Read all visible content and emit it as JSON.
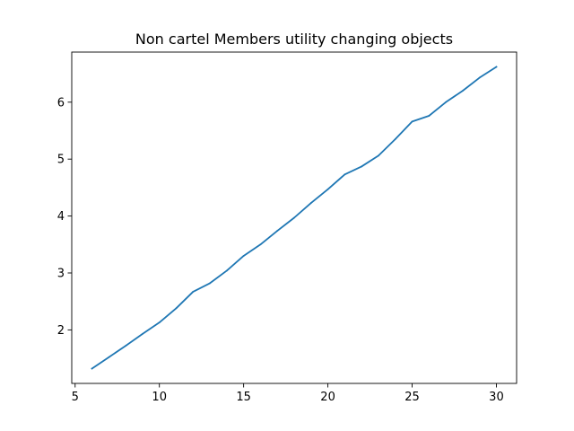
{
  "chart_data": {
    "type": "line",
    "title": "Non cartel Members utility changing objects",
    "xlabel": "",
    "ylabel": "",
    "xlim": [
      4.8,
      31.2
    ],
    "ylim": [
      1.06,
      6.88
    ],
    "xticks": [
      5,
      10,
      15,
      20,
      25,
      30
    ],
    "yticks": [
      2,
      3,
      4,
      5,
      6
    ],
    "grid": false,
    "legend": "none",
    "series": [
      {
        "color": "#1f77b4",
        "x": [
          6,
          7,
          8,
          9,
          10,
          11,
          12,
          13,
          14,
          15,
          16,
          17,
          18,
          19,
          20,
          21,
          22,
          23,
          24,
          25,
          26,
          27,
          28,
          29,
          30
        ],
        "y": [
          1.32,
          1.52,
          1.72,
          1.93,
          2.13,
          2.38,
          2.67,
          2.82,
          3.04,
          3.3,
          3.5,
          3.74,
          3.97,
          4.23,
          4.47,
          4.73,
          4.87,
          5.06,
          5.35,
          5.66,
          5.76,
          6.0,
          6.2,
          6.43,
          6.62
        ]
      }
    ]
  }
}
